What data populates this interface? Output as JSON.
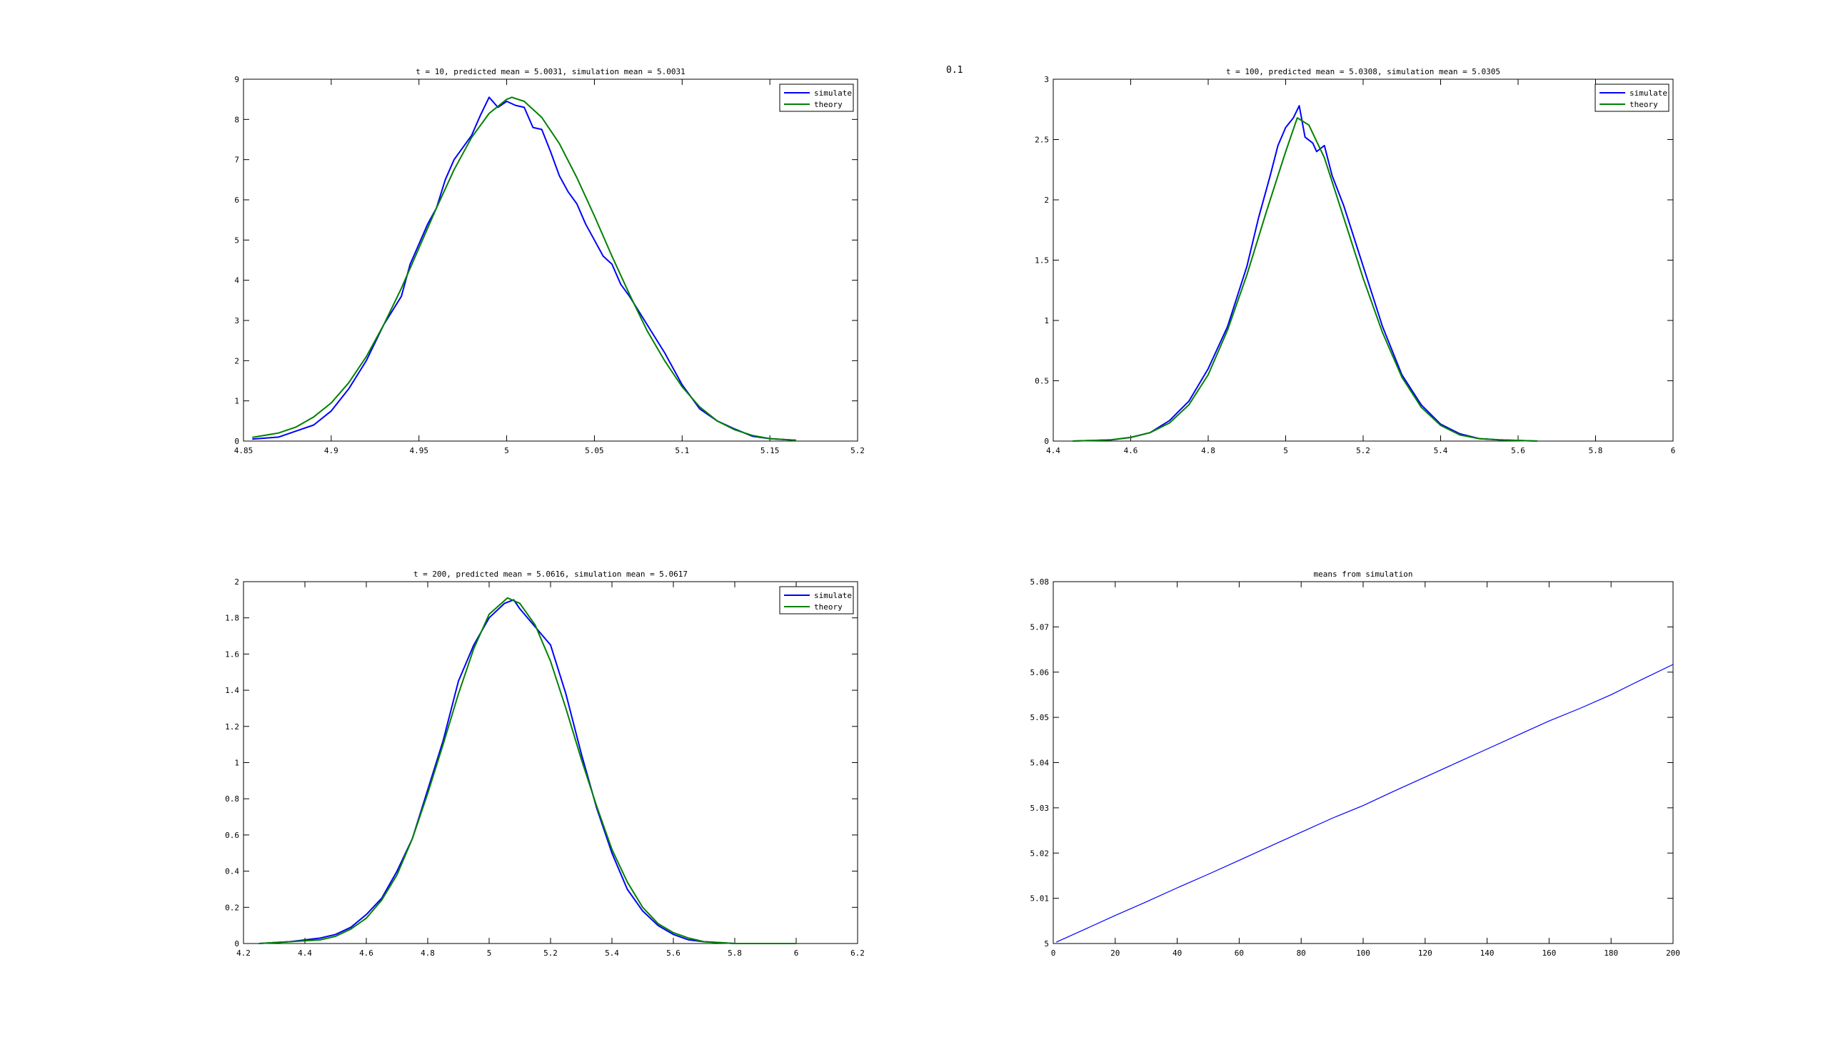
{
  "stray_text": "0.1",
  "chart_data": [
    {
      "type": "line",
      "title": "t = 10,  predicted mean = 5.0031,  simulation mean = 5.0031",
      "xlabel": "",
      "ylabel": "",
      "xlim": [
        4.85,
        5.2
      ],
      "ylim": [
        0,
        9
      ],
      "xticks": [
        4.85,
        4.9,
        4.95,
        5,
        5.05,
        5.1,
        5.15,
        5.2
      ],
      "xtick_labels": [
        "4.85",
        "4.9",
        "4.95",
        "5",
        "5.05",
        "5.1",
        "5.15",
        "5.2"
      ],
      "yticks": [
        0,
        1,
        2,
        3,
        4,
        5,
        6,
        7,
        8,
        9
      ],
      "ytick_labels": [
        "0",
        "1",
        "2",
        "3",
        "4",
        "5",
        "6",
        "7",
        "8",
        "9"
      ],
      "legend": "top-right",
      "grid": false,
      "series": [
        {
          "name": "simulate",
          "color": "#0000ff",
          "x": [
            4.855,
            4.87,
            4.88,
            4.89,
            4.9,
            4.91,
            4.92,
            4.93,
            4.94,
            4.945,
            4.95,
            4.955,
            4.96,
            4.965,
            4.97,
            4.975,
            4.98,
            4.985,
            4.99,
            4.995,
            5.0,
            5.005,
            5.01,
            5.015,
            5.02,
            5.025,
            5.03,
            5.035,
            5.04,
            5.045,
            5.05,
            5.055,
            5.06,
            5.065,
            5.07,
            5.08,
            5.09,
            5.1,
            5.11,
            5.12,
            5.13,
            5.14,
            5.15,
            5.165
          ],
          "y": [
            0.05,
            0.1,
            0.25,
            0.4,
            0.75,
            1.3,
            2.0,
            2.9,
            3.6,
            4.4,
            4.9,
            5.4,
            5.8,
            6.5,
            7.0,
            7.3,
            7.6,
            8.1,
            8.55,
            8.3,
            8.45,
            8.35,
            8.3,
            7.8,
            7.75,
            7.2,
            6.6,
            6.2,
            5.9,
            5.4,
            5.0,
            4.6,
            4.4,
            3.9,
            3.6,
            2.9,
            2.2,
            1.4,
            0.8,
            0.5,
            0.3,
            0.12,
            0.06,
            0.02
          ]
        },
        {
          "name": "theory",
          "color": "#008000",
          "x": [
            4.855,
            4.87,
            4.88,
            4.89,
            4.9,
            4.91,
            4.92,
            4.93,
            4.94,
            4.95,
            4.96,
            4.97,
            4.98,
            4.99,
            5.0,
            5.003,
            5.01,
            5.02,
            5.03,
            5.04,
            5.05,
            5.06,
            5.07,
            5.08,
            5.09,
            5.1,
            5.11,
            5.12,
            5.13,
            5.14,
            5.15,
            5.165
          ],
          "y": [
            0.09,
            0.2,
            0.35,
            0.6,
            0.95,
            1.45,
            2.1,
            2.9,
            3.8,
            4.8,
            5.8,
            6.75,
            7.55,
            8.15,
            8.5,
            8.55,
            8.45,
            8.05,
            7.4,
            6.55,
            5.6,
            4.6,
            3.65,
            2.75,
            2.0,
            1.35,
            0.85,
            0.5,
            0.28,
            0.14,
            0.06,
            0.02
          ]
        }
      ]
    },
    {
      "type": "line",
      "title": "t = 100,  predicted mean = 5.0308,  simulation mean = 5.0305",
      "xlabel": "",
      "ylabel": "",
      "xlim": [
        4.4,
        6
      ],
      "ylim": [
        0,
        3
      ],
      "xticks": [
        4.4,
        4.6,
        4.8,
        5,
        5.2,
        5.4,
        5.6,
        5.8,
        6
      ],
      "xtick_labels": [
        "4.4",
        "4.6",
        "4.8",
        "5",
        "5.2",
        "5.4",
        "5.6",
        "5.8",
        "6"
      ],
      "yticks": [
        0,
        0.5,
        1,
        1.5,
        2,
        2.5,
        3
      ],
      "ytick_labels": [
        "0",
        "0.5",
        "1",
        "1.5",
        "2",
        "2.5",
        "3"
      ],
      "legend": "top-right",
      "grid": false,
      "series": [
        {
          "name": "simulate",
          "color": "#0000ff",
          "x": [
            4.45,
            4.55,
            4.6,
            4.65,
            4.7,
            4.75,
            4.8,
            4.85,
            4.9,
            4.93,
            4.96,
            4.98,
            5.0,
            5.02,
            5.035,
            5.05,
            5.07,
            5.08,
            5.1,
            5.12,
            5.15,
            5.2,
            5.25,
            5.3,
            5.35,
            5.4,
            5.45,
            5.5,
            5.55,
            5.65
          ],
          "y": [
            0.0,
            0.01,
            0.03,
            0.07,
            0.17,
            0.33,
            0.6,
            0.95,
            1.45,
            1.85,
            2.2,
            2.45,
            2.6,
            2.68,
            2.78,
            2.52,
            2.47,
            2.4,
            2.45,
            2.2,
            1.95,
            1.45,
            0.95,
            0.55,
            0.3,
            0.14,
            0.06,
            0.02,
            0.01,
            0.0
          ]
        },
        {
          "name": "theory",
          "color": "#008000",
          "x": [
            4.45,
            4.55,
            4.6,
            4.65,
            4.7,
            4.75,
            4.8,
            4.85,
            4.9,
            4.95,
            5.0,
            5.03,
            5.06,
            5.1,
            5.15,
            5.2,
            5.25,
            5.3,
            5.35,
            5.4,
            5.45,
            5.5,
            5.55,
            5.65
          ],
          "y": [
            0.0,
            0.01,
            0.03,
            0.07,
            0.15,
            0.3,
            0.55,
            0.92,
            1.38,
            1.9,
            2.4,
            2.68,
            2.62,
            2.35,
            1.85,
            1.35,
            0.9,
            0.53,
            0.28,
            0.13,
            0.05,
            0.02,
            0.01,
            0.0
          ]
        }
      ]
    },
    {
      "type": "line",
      "title": "t = 200,  predicted mean = 5.0616,  simulation mean = 5.0617",
      "xlabel": "",
      "ylabel": "",
      "xlim": [
        4.2,
        6.2
      ],
      "ylim": [
        0,
        2
      ],
      "xticks": [
        4.2,
        4.4,
        4.6,
        4.8,
        5,
        5.2,
        5.4,
        5.6,
        5.8,
        6,
        6.2
      ],
      "xtick_labels": [
        "4.2",
        "4.4",
        "4.6",
        "4.8",
        "5",
        "5.2",
        "5.4",
        "5.6",
        "5.8",
        "6",
        "6.2"
      ],
      "yticks": [
        0,
        0.2,
        0.4,
        0.6,
        0.8,
        1,
        1.2,
        1.4,
        1.6,
        1.8,
        2
      ],
      "ytick_labels": [
        "0",
        "0.2",
        "0.4",
        "0.6",
        "0.8",
        "1",
        "1.2",
        "1.4",
        "1.6",
        "1.8",
        "2"
      ],
      "legend": "top-right",
      "grid": false,
      "series": [
        {
          "name": "simulate",
          "color": "#0000ff",
          "x": [
            4.25,
            4.35,
            4.45,
            4.5,
            4.55,
            4.6,
            4.65,
            4.7,
            4.75,
            4.8,
            4.85,
            4.9,
            4.95,
            5.0,
            5.05,
            5.08,
            5.1,
            5.15,
            5.2,
            5.25,
            5.3,
            5.35,
            5.4,
            5.45,
            5.5,
            5.55,
            5.6,
            5.65,
            5.7,
            5.8,
            6.0
          ],
          "y": [
            0.0,
            0.01,
            0.03,
            0.05,
            0.09,
            0.16,
            0.25,
            0.4,
            0.58,
            0.85,
            1.12,
            1.45,
            1.65,
            1.8,
            1.88,
            1.9,
            1.85,
            1.75,
            1.65,
            1.38,
            1.05,
            0.75,
            0.5,
            0.3,
            0.18,
            0.1,
            0.05,
            0.02,
            0.01,
            0.0,
            0.0
          ]
        },
        {
          "name": "theory",
          "color": "#008000",
          "x": [
            4.25,
            4.35,
            4.45,
            4.5,
            4.55,
            4.6,
            4.65,
            4.7,
            4.75,
            4.8,
            4.85,
            4.9,
            4.95,
            5.0,
            5.06,
            5.1,
            5.15,
            5.2,
            5.25,
            5.3,
            5.35,
            5.4,
            5.45,
            5.5,
            5.55,
            5.6,
            5.65,
            5.7,
            5.8,
            6.0
          ],
          "y": [
            0.0,
            0.01,
            0.02,
            0.04,
            0.08,
            0.14,
            0.24,
            0.38,
            0.58,
            0.83,
            1.1,
            1.38,
            1.63,
            1.82,
            1.91,
            1.88,
            1.76,
            1.56,
            1.3,
            1.02,
            0.76,
            0.52,
            0.34,
            0.2,
            0.11,
            0.06,
            0.03,
            0.01,
            0.0,
            0.0
          ]
        }
      ]
    },
    {
      "type": "line",
      "title": "means from simulation",
      "xlabel": "",
      "ylabel": "",
      "xlim": [
        0,
        200
      ],
      "ylim": [
        5,
        5.08
      ],
      "xticks": [
        0,
        20,
        40,
        60,
        80,
        100,
        120,
        140,
        160,
        180,
        200
      ],
      "xtick_labels": [
        "0",
        "20",
        "40",
        "60",
        "80",
        "100",
        "120",
        "140",
        "160",
        "180",
        "200"
      ],
      "yticks": [
        5,
        5.01,
        5.02,
        5.03,
        5.04,
        5.05,
        5.06,
        5.07,
        5.08
      ],
      "ytick_labels": [
        "5",
        "5.01",
        "5.02",
        "5.03",
        "5.04",
        "5.05",
        "5.06",
        "5.07",
        "5.08"
      ],
      "grid": false,
      "series": [
        {
          "color": "#0000ff",
          "x": [
            1,
            10,
            20,
            30,
            40,
            50,
            60,
            70,
            80,
            90,
            100,
            110,
            120,
            130,
            140,
            150,
            160,
            170,
            180,
            190,
            200
          ],
          "y": [
            5.0003,
            5.0031,
            5.0062,
            5.0092,
            5.0123,
            5.0153,
            5.0184,
            5.0215,
            5.0246,
            5.0277,
            5.0305,
            5.0337,
            5.0368,
            5.0399,
            5.043,
            5.0461,
            5.0492,
            5.052,
            5.055,
            5.0584,
            5.0617
          ]
        }
      ]
    }
  ]
}
